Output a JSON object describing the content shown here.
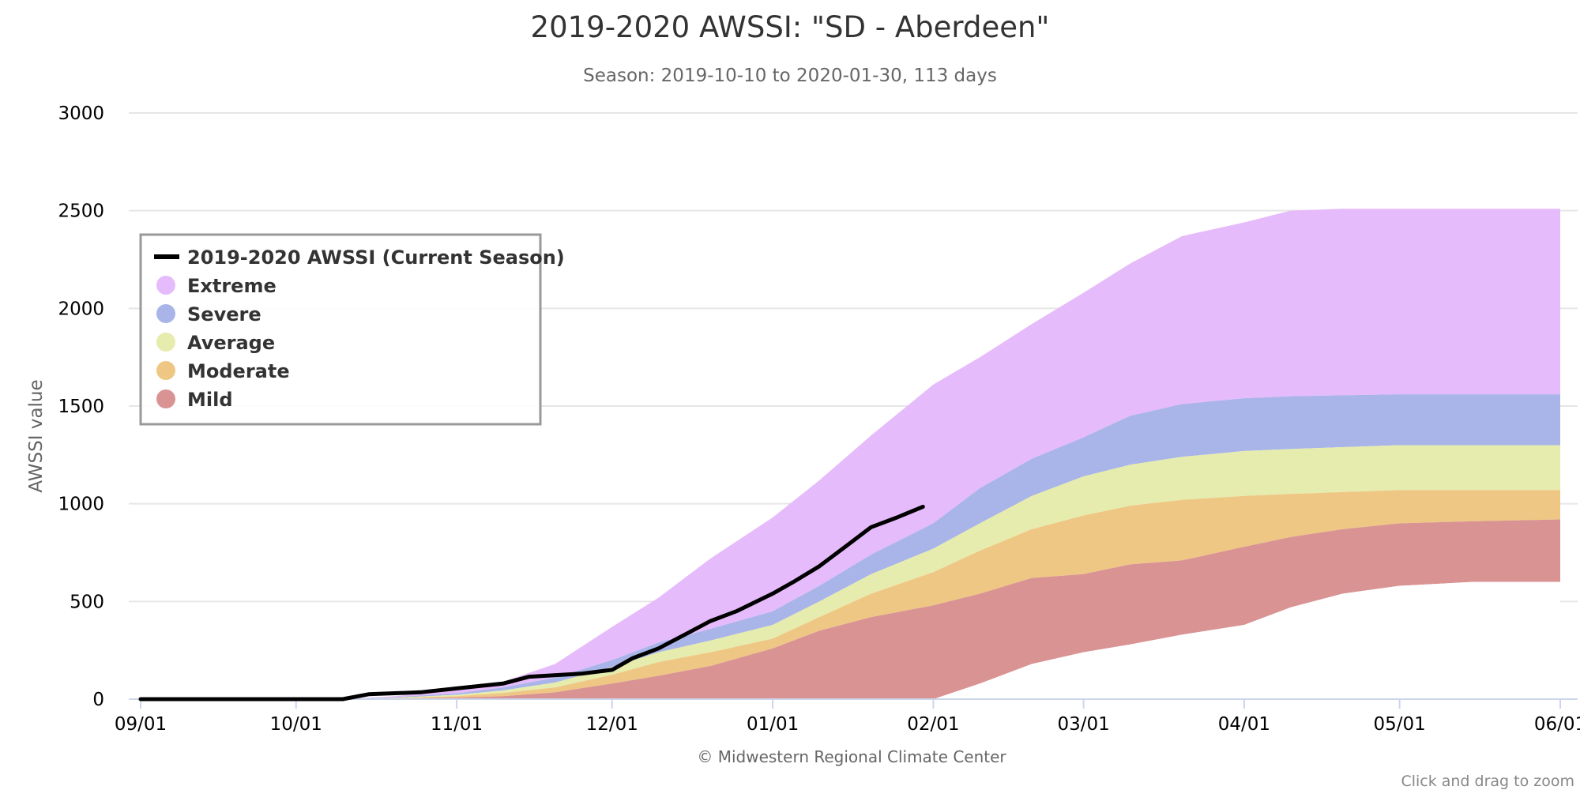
{
  "chart_data": {
    "type": "area",
    "title": "2019-2020 AWSSI: \"SD - Aberdeen\"",
    "subtitle": "Season: 2019-10-10 to 2020-01-30, 113 days",
    "ylabel": "AWSSI value",
    "xlabel": "",
    "ylim": [
      0,
      3000
    ],
    "yticks": [
      0,
      500,
      1000,
      1500,
      2000,
      2500,
      3000
    ],
    "xlim": [
      "09/01",
      "06/01"
    ],
    "xticks": [
      "09/01",
      "10/01",
      "11/01",
      "12/01",
      "01/01",
      "02/01",
      "03/01",
      "04/01",
      "05/01",
      "06/01"
    ],
    "legend_position": "top-left",
    "grid": true,
    "credit": "© Midwestern Regional Climate Center",
    "zoom_hint": "Click and drag to zoom",
    "band_x": [
      "10/10",
      "10/20",
      "11/01",
      "11/10",
      "11/20",
      "12/01",
      "12/10",
      "12/20",
      "01/01",
      "01/10",
      "01/20",
      "02/01",
      "02/10",
      "02/20",
      "03/01",
      "03/10",
      "03/20",
      "04/01",
      "04/10",
      "04/20",
      "05/01",
      "05/15",
      "06/01"
    ],
    "series": [
      {
        "name": "Extreme",
        "color": "#e6bbfb",
        "values": [
          0,
          15,
          45,
          90,
          180,
          370,
          520,
          720,
          930,
          1120,
          1350,
          1610,
          1750,
          1920,
          2080,
          2230,
          2370,
          2440,
          2500,
          2510,
          2510,
          2510,
          2510
        ]
      },
      {
        "name": "Severe",
        "color": "#a9b4e9",
        "values": [
          0,
          10,
          30,
          60,
          110,
          200,
          290,
          360,
          450,
          580,
          740,
          900,
          1080,
          1230,
          1340,
          1450,
          1510,
          1540,
          1550,
          1555,
          1560,
          1560,
          1560
        ]
      },
      {
        "name": "Average",
        "color": "#e6ecad",
        "values": [
          0,
          7,
          22,
          45,
          85,
          165,
          240,
          300,
          380,
          500,
          640,
          770,
          900,
          1040,
          1140,
          1200,
          1240,
          1270,
          1280,
          1290,
          1300,
          1300,
          1300
        ]
      },
      {
        "name": "Moderate",
        "color": "#efc784",
        "values": [
          0,
          5,
          15,
          32,
          60,
          125,
          190,
          240,
          310,
          420,
          540,
          650,
          760,
          870,
          940,
          990,
          1020,
          1040,
          1050,
          1060,
          1070,
          1070,
          1070
        ]
      },
      {
        "name": "Mild",
        "color": "#d99393",
        "values": [
          0,
          3,
          8,
          15,
          35,
          80,
          120,
          170,
          260,
          350,
          420,
          480,
          540,
          620,
          640,
          690,
          710,
          780,
          830,
          870,
          900,
          910,
          920
        ]
      },
      {
        "name": "Mild-floor",
        "color": "#ffffff",
        "values": [
          0,
          0,
          0,
          0,
          0,
          0,
          0,
          0,
          0,
          0,
          0,
          0,
          80,
          180,
          240,
          280,
          330,
          380,
          470,
          540,
          580,
          600,
          600
        ]
      }
    ],
    "current_season": {
      "name": "2019-2020 AWSSI (Current Season)",
      "color": "#000000",
      "x": [
        "09/01",
        "10/01",
        "10/10",
        "10/15",
        "10/25",
        "11/01",
        "11/10",
        "11/15",
        "11/25",
        "12/01",
        "12/05",
        "12/10",
        "12/15",
        "12/20",
        "12/25",
        "01/01",
        "01/05",
        "01/10",
        "01/15",
        "01/20",
        "01/25",
        "01/30"
      ],
      "values": [
        0,
        0,
        0,
        25,
        35,
        55,
        80,
        115,
        130,
        150,
        210,
        260,
        330,
        400,
        450,
        540,
        600,
        680,
        780,
        880,
        930,
        985
      ]
    }
  },
  "legend": {
    "items": [
      {
        "label": "2019-2020 AWSSI (Current Season)",
        "color": "#000000",
        "shape": "line"
      },
      {
        "label": "Extreme",
        "color": "#e6bbfb",
        "shape": "circle"
      },
      {
        "label": "Severe",
        "color": "#a9b4e9",
        "shape": "circle"
      },
      {
        "label": "Average",
        "color": "#e6ecad",
        "shape": "circle"
      },
      {
        "label": "Moderate",
        "color": "#efc784",
        "shape": "circle"
      },
      {
        "label": "Mild",
        "color": "#d99393",
        "shape": "circle"
      }
    ]
  }
}
